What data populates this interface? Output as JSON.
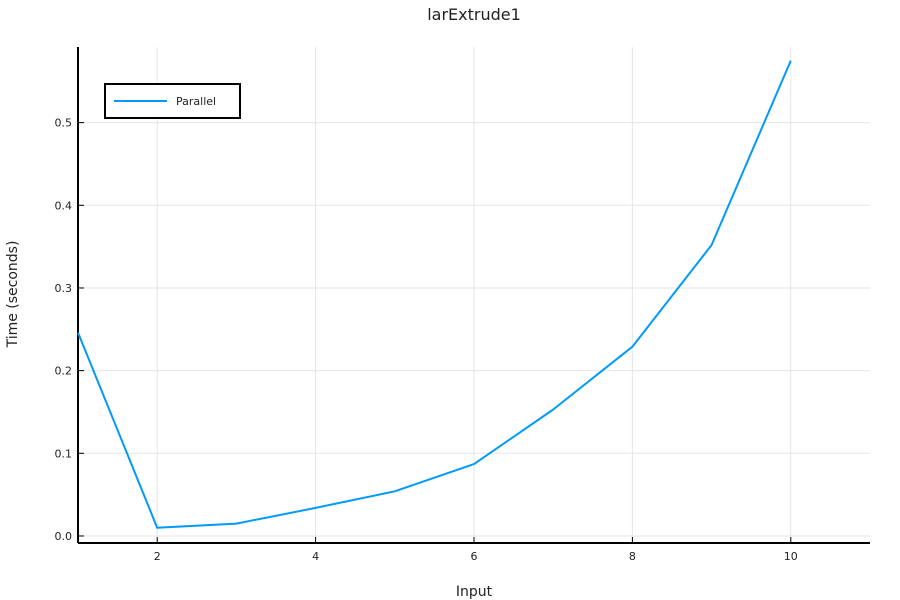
{
  "chart_data": {
    "type": "line",
    "title": "larExtrude1",
    "xlabel": "Input",
    "ylabel": "Time (seconds)",
    "xlim": [
      1,
      11
    ],
    "ylim": [
      -0.0085,
      0.5915
    ],
    "xticks": [
      2,
      4,
      6,
      8,
      10
    ],
    "yticks": [
      0.0,
      0.1,
      0.2,
      0.3,
      0.4,
      0.5
    ],
    "ytick_labels": [
      "0.0",
      "0.1",
      "0.2",
      "0.3",
      "0.4",
      "0.5"
    ],
    "grid": true,
    "legend_position": "top-left",
    "series": [
      {
        "name": "Parallel",
        "color": "#009af9",
        "x": [
          1,
          2,
          3,
          4,
          5,
          6,
          7,
          8,
          9,
          10
        ],
        "y": [
          0.246,
          0.01,
          0.015,
          0.034,
          0.054,
          0.087,
          0.153,
          0.229,
          0.352,
          0.575
        ]
      }
    ]
  }
}
